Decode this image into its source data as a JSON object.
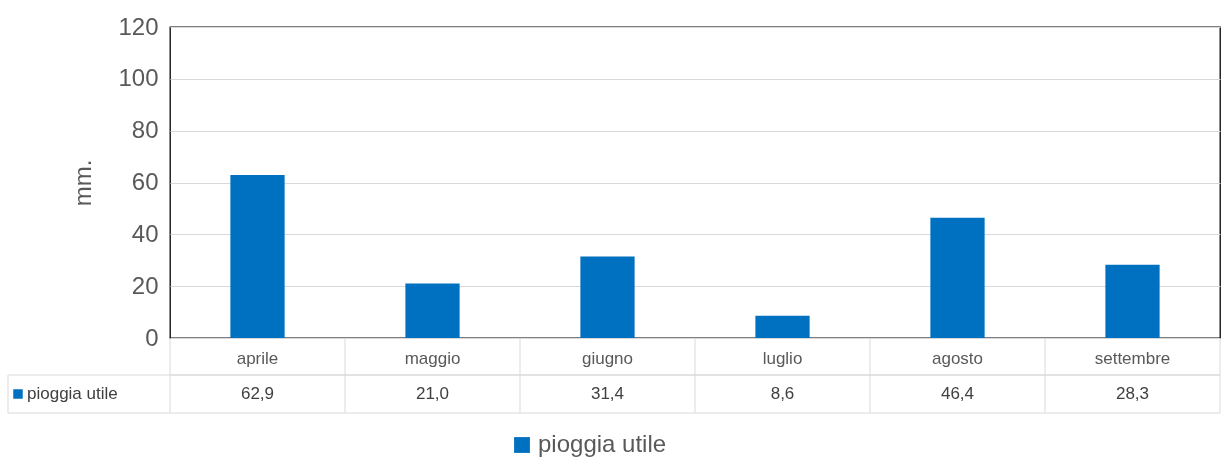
{
  "chart_data": {
    "type": "bar",
    "ylabel": "mm.",
    "categories": [
      "aprile",
      "maggio",
      "giugno",
      "luglio",
      "agosto",
      "settembre"
    ],
    "series": [
      {
        "name": "pioggia utile",
        "color": "#0070c0",
        "values": [
          62.9,
          21.0,
          31.4,
          8.6,
          46.4,
          28.3
        ],
        "value_labels": [
          "62,9",
          "21,0",
          "31,4",
          "8,6",
          "46,4",
          "28,3"
        ]
      }
    ],
    "ylim": [
      0,
      120
    ],
    "yticks": [
      0,
      20,
      40,
      60,
      80,
      100,
      120
    ],
    "grid": "y",
    "legend": "bottom"
  }
}
